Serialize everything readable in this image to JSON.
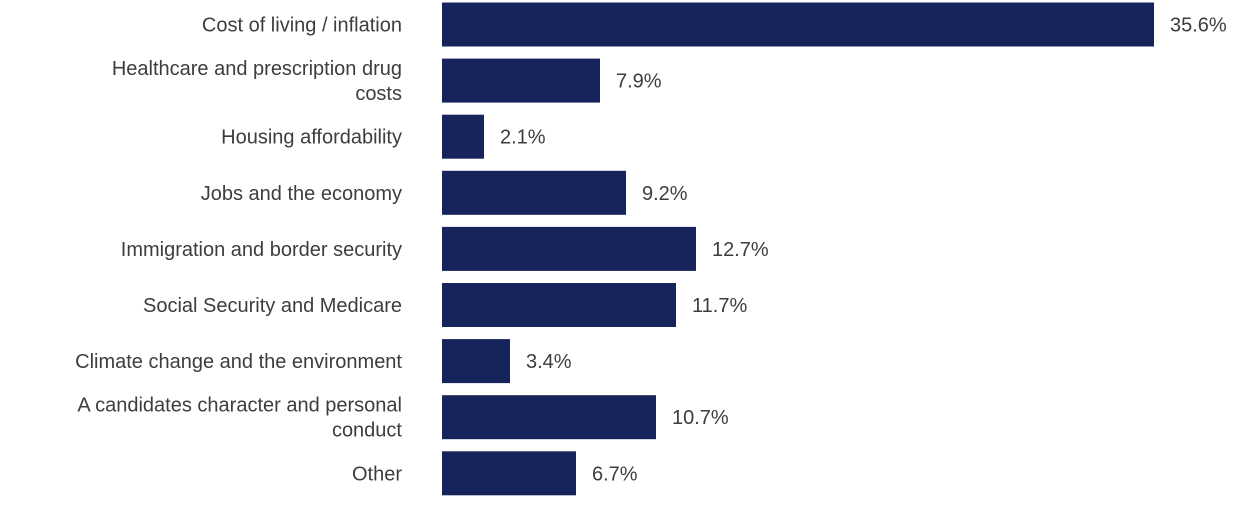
{
  "colors": {
    "bar": "#17245c",
    "text": "#3d3d3d",
    "background": "#ffffff"
  },
  "chart_data": {
    "type": "bar",
    "orientation": "horizontal",
    "title": "",
    "xlabel": "",
    "ylabel": "",
    "xlim": [
      0,
      35.6
    ],
    "grid": false,
    "legend": "none",
    "value_suffix": "%",
    "categories": [
      "Cost of living / inflation",
      "Healthcare and prescription drug costs",
      "Housing affordability",
      "Jobs and the economy",
      "Immigration and border security",
      "Social Security and Medicare",
      "Climate change and the environment",
      "A candidates character and personal conduct",
      "Other"
    ],
    "category_label_lines": [
      [
        "Cost of living / inflation"
      ],
      [
        "Healthcare and prescription drug",
        "costs"
      ],
      [
        "Housing affordability"
      ],
      [
        "Jobs and the economy"
      ],
      [
        "Immigration and border security"
      ],
      [
        "Social Security and Medicare"
      ],
      [
        "Climate change and the environment"
      ],
      [
        "A candidates character and personal",
        "conduct"
      ],
      [
        "Other"
      ]
    ],
    "values": [
      35.6,
      7.9,
      2.1,
      9.2,
      12.7,
      11.7,
      3.4,
      10.7,
      6.7
    ],
    "value_labels": [
      "35.6%",
      "7.9%",
      "2.1%",
      "9.2%",
      "12.7%",
      "11.7%",
      "3.4%",
      "10.7%",
      "6.7%"
    ]
  }
}
